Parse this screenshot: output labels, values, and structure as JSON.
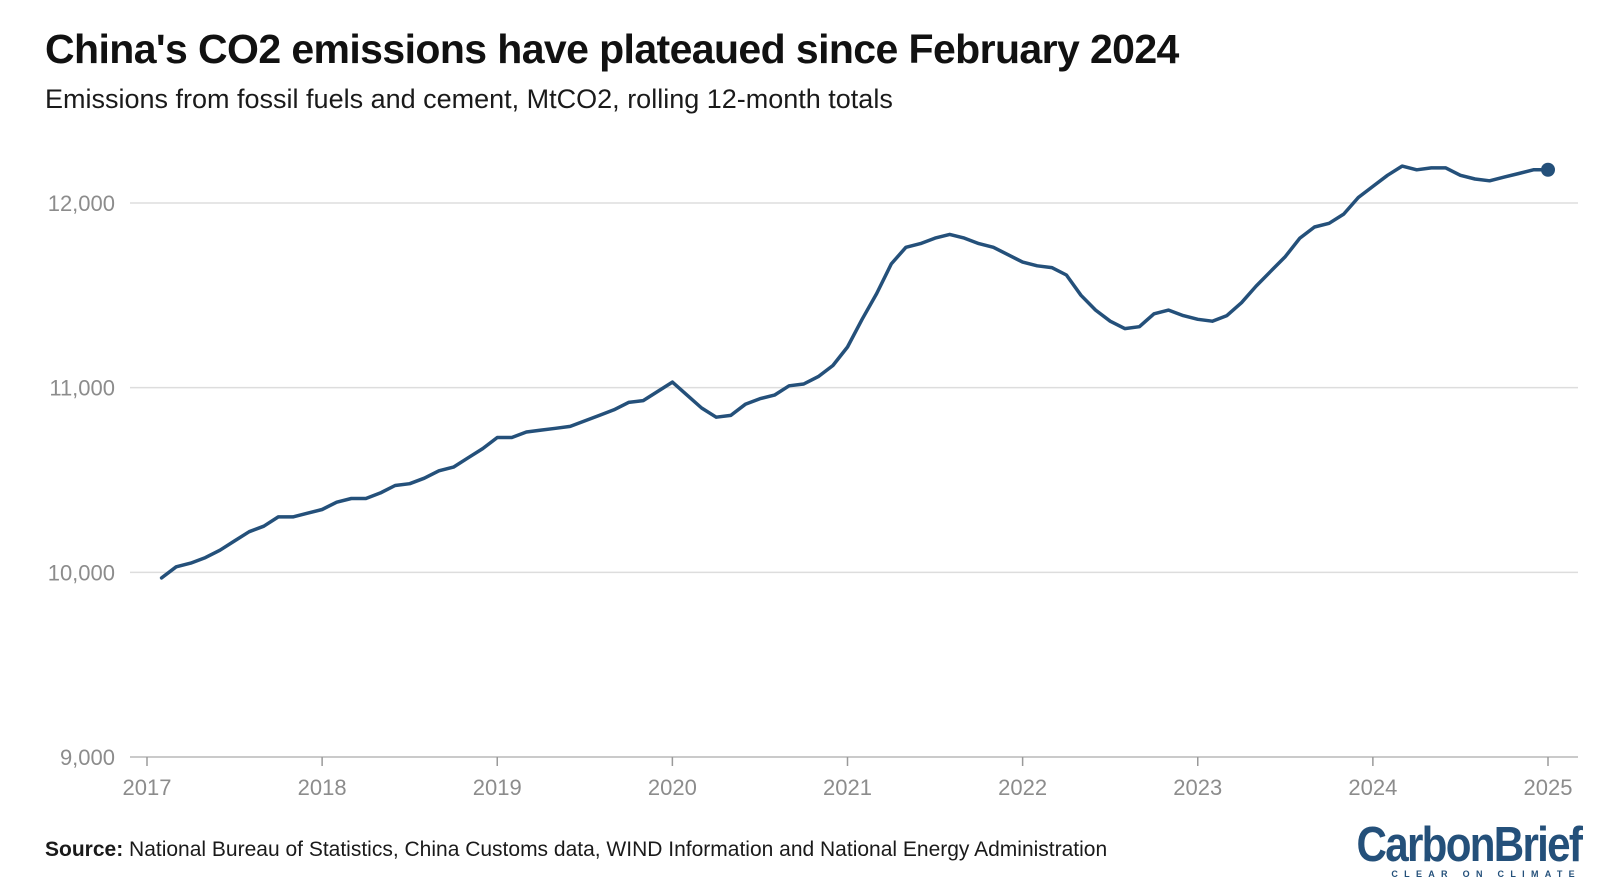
{
  "title": "China's CO2 emissions have plateaued since February 2024",
  "subtitle": "Emissions from fossil fuels and cement, MtCO2, rolling 12-month totals",
  "source": {
    "label": "Source:",
    "text": "National Bureau of Statistics, China Customs data, WIND Information and National Energy Administration"
  },
  "logo": {
    "word": "CarbonBrief",
    "tagline": "CLEAR ON CLIMATE"
  },
  "colors": {
    "line": "#24507a",
    "grid": "#dddddd",
    "axis_text": "#8c8c8c"
  },
  "chart_data": {
    "type": "line",
    "title": "China's CO2 emissions have plateaued since February 2024",
    "ylabel": "",
    "xlabel": "",
    "ylim": [
      9000,
      12300
    ],
    "xlim": [
      "2017-01",
      "2025-01"
    ],
    "yticks": [
      9000,
      10000,
      11000,
      12000
    ],
    "ytick_labels": [
      "9,000",
      "10,000",
      "11,000",
      "12,000"
    ],
    "xticks": [
      "2017",
      "2018",
      "2019",
      "2020",
      "2021",
      "2022",
      "2023",
      "2024",
      "2025"
    ],
    "grid": true,
    "legend": "none",
    "end_marker": true,
    "series": [
      {
        "x": [
          "2017-02",
          "2017-03",
          "2017-04",
          "2017-05",
          "2017-06",
          "2017-07",
          "2017-08",
          "2017-09",
          "2017-10",
          "2017-11",
          "2017-12",
          "2018-01",
          "2018-02",
          "2018-03",
          "2018-04",
          "2018-05",
          "2018-06",
          "2018-07",
          "2018-08",
          "2018-09",
          "2018-10",
          "2018-11",
          "2018-12",
          "2019-01",
          "2019-02",
          "2019-03",
          "2019-04",
          "2019-05",
          "2019-06",
          "2019-07",
          "2019-08",
          "2019-09",
          "2019-10",
          "2019-11",
          "2019-12",
          "2020-01",
          "2020-02",
          "2020-03",
          "2020-04",
          "2020-05",
          "2020-06",
          "2020-07",
          "2020-08",
          "2020-09",
          "2020-10",
          "2020-11",
          "2020-12",
          "2021-01",
          "2021-02",
          "2021-03",
          "2021-04",
          "2021-05",
          "2021-06",
          "2021-07",
          "2021-08",
          "2021-09",
          "2021-10",
          "2021-11",
          "2021-12",
          "2022-01",
          "2022-02",
          "2022-03",
          "2022-04",
          "2022-05",
          "2022-06",
          "2022-07",
          "2022-08",
          "2022-09",
          "2022-10",
          "2022-11",
          "2022-12",
          "2023-01",
          "2023-02",
          "2023-03",
          "2023-04",
          "2023-05",
          "2023-06",
          "2023-07",
          "2023-08",
          "2023-09",
          "2023-10",
          "2023-11",
          "2023-12",
          "2024-01",
          "2024-02",
          "2024-03",
          "2024-04",
          "2024-05",
          "2024-06",
          "2024-07",
          "2024-08",
          "2024-09",
          "2024-10",
          "2024-11",
          "2024-12",
          "2025-01"
        ],
        "values": [
          9970,
          10030,
          10050,
          10080,
          10120,
          10170,
          10220,
          10250,
          10300,
          10300,
          10320,
          10340,
          10380,
          10400,
          10400,
          10430,
          10470,
          10480,
          10510,
          10550,
          10570,
          10620,
          10670,
          10730,
          10730,
          10760,
          10770,
          10780,
          10790,
          10820,
          10850,
          10880,
          10920,
          10930,
          10980,
          11030,
          10960,
          10890,
          10840,
          10850,
          10910,
          10940,
          10960,
          11010,
          11020,
          11060,
          11120,
          11220,
          11370,
          11510,
          11670,
          11760,
          11780,
          11810,
          11830,
          11810,
          11780,
          11760,
          11720,
          11680,
          11660,
          11650,
          11610,
          11500,
          11420,
          11360,
          11320,
          11330,
          11400,
          11420,
          11390,
          11370,
          11360,
          11390,
          11460,
          11550,
          11630,
          11710,
          11810,
          11870,
          11890,
          11940,
          12030,
          12090,
          12150,
          12200,
          12180,
          12190,
          12190,
          12150,
          12130,
          12120,
          12140,
          12160,
          12180,
          12180
        ]
      }
    ]
  }
}
